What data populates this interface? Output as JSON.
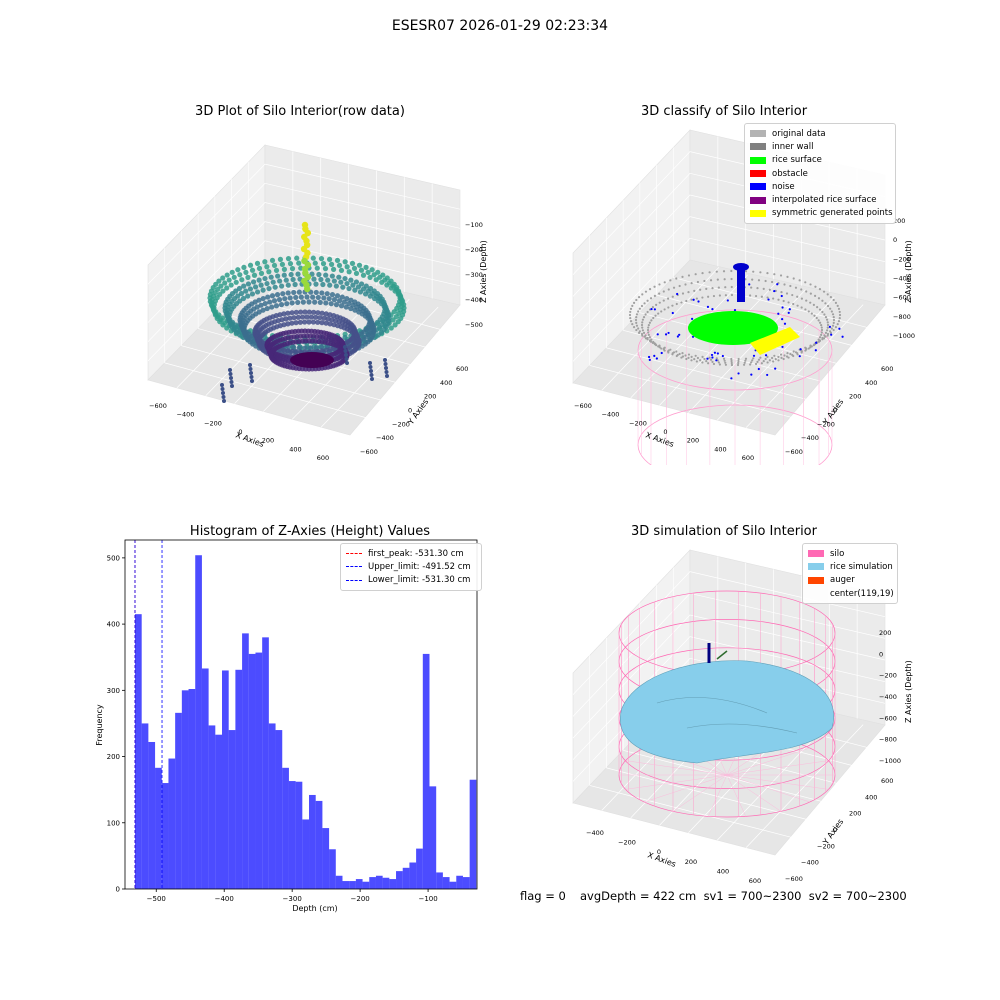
{
  "window": {
    "title": "ESESR07 2026-01-29 02:23:34"
  },
  "panels": {
    "raw": {
      "title": "3D Plot of Silo Interior(row data)",
      "xlabel": "X Axies",
      "ylabel": "Y Axies",
      "zlabel": "Z Axies (Depth)",
      "xticks": [
        "−600",
        "−400",
        "−200",
        "0",
        "200",
        "400",
        "600"
      ],
      "yticks": [
        "−600",
        "−400",
        "−200",
        "0",
        "200",
        "400",
        "600"
      ],
      "zticks": [
        "−100",
        "−200",
        "−300",
        "−400",
        "−500"
      ]
    },
    "classify": {
      "title": "3D classify of Silo Interior",
      "xlabel": "X Axies",
      "ylabel": "Y Axies",
      "zlabel": "Z Axies (Depth)",
      "xticks": [
        "−600",
        "−400",
        "−200",
        "0",
        "200",
        "400",
        "600"
      ],
      "yticks": [
        "−600",
        "−400",
        "−200",
        "0",
        "200",
        "400",
        "600"
      ],
      "zticks": [
        "200",
        "0",
        "−200",
        "−400",
        "−600",
        "−800",
        "−1000"
      ],
      "legend": [
        {
          "label": "original data",
          "color": "#b3b3b3"
        },
        {
          "label": "inner wall",
          "color": "#808080"
        },
        {
          "label": "rice surface",
          "color": "#00ff00"
        },
        {
          "label": "obstacle",
          "color": "#ff0000"
        },
        {
          "label": "noise",
          "color": "#0000ff"
        },
        {
          "label": "interpolated rice surface",
          "color": "#800080"
        },
        {
          "label": "symmetric generated points",
          "color": "#ffff00"
        }
      ]
    },
    "simulation": {
      "title": "3D simulation of Silo Interior",
      "xlabel": "X Axies",
      "ylabel": "Y Axies",
      "zlabel": "Z Axies (Depth)",
      "xticks": [
        "−400",
        "−200",
        "0",
        "200",
        "400",
        "600"
      ],
      "yticks": [
        "−600",
        "−400",
        "−200",
        "0",
        "200",
        "400",
        "600"
      ],
      "zticks": [
        "200",
        "0",
        "−200",
        "−400",
        "−600",
        "−800",
        "−1000"
      ],
      "legend": [
        {
          "label": "silo",
          "color": "#ff69b4"
        },
        {
          "label": "rice simulation",
          "color": "#87ceeb"
        },
        {
          "label": "auger",
          "color": "#ff4500"
        },
        {
          "label": "center(119,19)",
          "color": ""
        }
      ]
    }
  },
  "footer": {
    "flag": "flag = 0",
    "stats": "avgDepth = 422 cm  sv1 = 700~2300  sv2 = 700~2300"
  },
  "chart_data": {
    "type": "bar",
    "title": "Histogram of Z-Axies (Height) Values",
    "xlabel": "Depth (cm)",
    "ylabel": "Frequency",
    "xlim": [
      -546,
      -28
    ],
    "ylim": [
      0,
      527
    ],
    "xticks": [
      -500,
      -400,
      -300,
      -200,
      -100
    ],
    "xtick_labels": [
      "−500",
      "−400",
      "−300",
      "−200",
      "−100"
    ],
    "yticks": [
      0,
      100,
      200,
      300,
      400,
      500
    ],
    "bin_start": -531.3,
    "bin_width": 9.85,
    "values": [
      415,
      250,
      222,
      183,
      160,
      197,
      266,
      300,
      302,
      504,
      333,
      247,
      233,
      330,
      240,
      331,
      386,
      355,
      357,
      380,
      250,
      240,
      183,
      163,
      162,
      105,
      142,
      133,
      92,
      60,
      20,
      12,
      12,
      15,
      11,
      18,
      20,
      17,
      15,
      27,
      32,
      40,
      61,
      355,
      155,
      25,
      18,
      11,
      20,
      18,
      165
    ],
    "color": "#0000ff",
    "lines": [
      {
        "label": "first_peak: -531.30 cm",
        "x": -531.3,
        "color": "#ff0000"
      },
      {
        "label": "Upper_limit: -491.52 cm",
        "x": -491.52,
        "color": "#0000ff"
      },
      {
        "label": "Lower_limit: -531.30 cm",
        "x": -531.3,
        "color": "#0000ff"
      }
    ],
    "legend_position": "top-right"
  }
}
